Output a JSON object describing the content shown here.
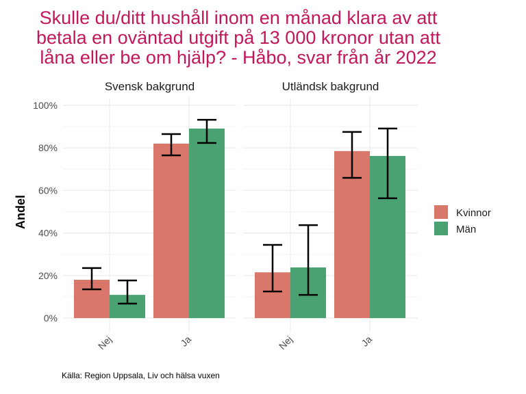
{
  "chart_data": {
    "type": "bar",
    "title": "Skulle du/ditt hushåll inom en månad klara av att betala en oväntad utgift på 13 000 kronor utan att låna eller be om hjälp? - Håbo, svar från år 2022",
    "title_lines": [
      "Skulle du/ditt hushåll inom en månad klara av att",
      "betala en oväntad utgift på 13 000 kronor utan att",
      "låna eller be om hjälp? - Håbo, svar från år 2022"
    ],
    "ylabel": "Andel",
    "xlabel": "",
    "ylim": [
      0,
      100
    ],
    "yticks": [
      0,
      20,
      40,
      60,
      80,
      100
    ],
    "ytick_labels": [
      "0%",
      "20%",
      "40%",
      "60%",
      "80%",
      "100%"
    ],
    "categories": [
      "Nej",
      "Ja"
    ],
    "legend_position": "right",
    "grid": true,
    "panels": [
      {
        "name": "Svensk bakgrund",
        "series": [
          {
            "name": "Kvinnor",
            "color": "#d9776a",
            "values": [
              18.0,
              82.0
            ],
            "lower": [
              13.5,
              76.5
            ],
            "upper": [
              23.5,
              86.5
            ]
          },
          {
            "name": "Män",
            "color": "#4aa272",
            "values": [
              10.9,
              89.1
            ],
            "lower": [
              6.8,
              82.3
            ],
            "upper": [
              17.7,
              93.2
            ]
          }
        ]
      },
      {
        "name": "Utländsk bakgrund",
        "series": [
          {
            "name": "Kvinnor",
            "color": "#d9776a",
            "values": [
              21.5,
              78.5
            ],
            "lower": [
              12.5,
              65.9
            ],
            "upper": [
              34.4,
              87.5
            ]
          },
          {
            "name": "Män",
            "color": "#4aa272",
            "values": [
              23.8,
              76.2
            ],
            "lower": [
              10.9,
              56.3
            ],
            "upper": [
              43.7,
              89.1
            ]
          }
        ]
      }
    ],
    "caption": "Källa: Region Uppsala, Liv och hälsa vuxen"
  }
}
